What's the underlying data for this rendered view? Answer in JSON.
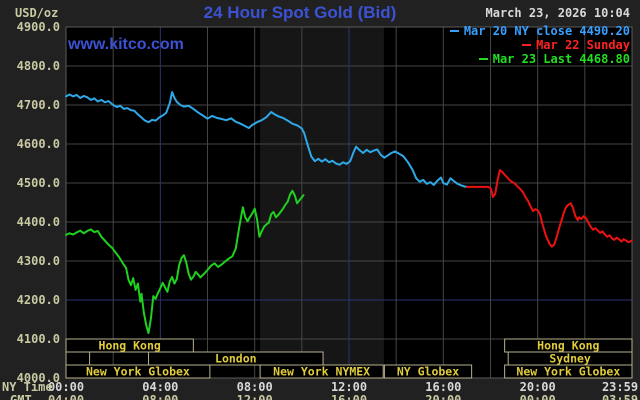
{
  "header": {
    "title": "24 Hour Spot Gold (Bid)",
    "date": "March 23, 2026 10:04",
    "unit": "USD/oz",
    "watermark": "www.kitco.com"
  },
  "legend": [
    {
      "label": "Mar 20 NY close 4490.20",
      "color": "#38a0ff"
    },
    {
      "label": "Mar 22 Sunday",
      "color": "#ff2222"
    },
    {
      "label": "Mar 23 Last 4468.80",
      "color": "#22dd22"
    }
  ],
  "axis": {
    "ny_label": "NY Time",
    "gmt_label": "GMT",
    "tick_hours": [
      0,
      4,
      8,
      12,
      16,
      20,
      23.983
    ],
    "ny_ticks": [
      "00:00",
      "04:00",
      "08:00",
      "12:00",
      "16:00",
      "20:00",
      "23:59"
    ],
    "gmt_ticks": [
      "04:00",
      "08:00",
      "12:00",
      "16:00",
      "20:00",
      "00:00",
      "03:59"
    ]
  },
  "sessions": {
    "rows": [
      [
        {
          "label": "Hong Kong",
          "start": 0,
          "end": 5.4
        },
        {
          "label": "Hong Kong",
          "start": 18.6,
          "end": 24
        }
      ],
      [
        {
          "label": "",
          "start": 0,
          "end": 1.0
        },
        {
          "label": "London",
          "start": 3.5,
          "end": 10.9
        },
        {
          "label": "Sydney",
          "start": 18.75,
          "end": 24
        }
      ],
      [
        {
          "label": "New York Globex",
          "start": 0,
          "end": 6.1
        },
        {
          "label": "New York NYMEX",
          "start": 8.23,
          "end": 13.45
        },
        {
          "label": "NY Globex",
          "start": 13.5,
          "end": 17.2
        },
        {
          "label": "New York Globex",
          "start": 18.6,
          "end": 24
        }
      ]
    ]
  },
  "chart_data": {
    "type": "line",
    "title": "24 Hour Spot Gold (Bid)",
    "ylabel": "USD/oz",
    "ylim": [
      4000,
      4900
    ],
    "ytick_step": 100,
    "xlim_hours": [
      0,
      24
    ],
    "grid": true,
    "accent_hlines": [
      4200
    ],
    "accent_vlines_hours": [
      4,
      12
    ],
    "highlight_band_hours": [
      8.23,
      13.48
    ],
    "legend_position": "top-right",
    "series": [
      {
        "name": "Mar 20 NY close",
        "close": 4490.2,
        "color": "#2fa8e8",
        "points": [
          [
            0.0,
            4722
          ],
          [
            0.15,
            4727
          ],
          [
            0.3,
            4722
          ],
          [
            0.45,
            4726
          ],
          [
            0.6,
            4718
          ],
          [
            0.75,
            4723
          ],
          [
            0.9,
            4720
          ],
          [
            1.05,
            4713
          ],
          [
            1.2,
            4717
          ],
          [
            1.35,
            4709
          ],
          [
            1.5,
            4713
          ],
          [
            1.65,
            4707
          ],
          [
            1.8,
            4710
          ],
          [
            2.0,
            4700
          ],
          [
            2.15,
            4695
          ],
          [
            2.3,
            4698
          ],
          [
            2.45,
            4690
          ],
          [
            2.6,
            4692
          ],
          [
            2.75,
            4687
          ],
          [
            2.9,
            4685
          ],
          [
            3.05,
            4676
          ],
          [
            3.2,
            4668
          ],
          [
            3.35,
            4660
          ],
          [
            3.5,
            4656
          ],
          [
            3.65,
            4662
          ],
          [
            3.8,
            4660
          ],
          [
            3.95,
            4668
          ],
          [
            4.1,
            4673
          ],
          [
            4.25,
            4680
          ],
          [
            4.4,
            4705
          ],
          [
            4.5,
            4733
          ],
          [
            4.6,
            4718
          ],
          [
            4.7,
            4708
          ],
          [
            4.85,
            4700
          ],
          [
            5.0,
            4696
          ],
          [
            5.2,
            4698
          ],
          [
            5.4,
            4690
          ],
          [
            5.6,
            4681
          ],
          [
            5.8,
            4673
          ],
          [
            6.0,
            4665
          ],
          [
            6.2,
            4672
          ],
          [
            6.4,
            4667
          ],
          [
            6.6,
            4664
          ],
          [
            6.8,
            4661
          ],
          [
            7.0,
            4666
          ],
          [
            7.2,
            4657
          ],
          [
            7.4,
            4652
          ],
          [
            7.6,
            4646
          ],
          [
            7.75,
            4641
          ],
          [
            7.9,
            4649
          ],
          [
            8.1,
            4656
          ],
          [
            8.3,
            4661
          ],
          [
            8.5,
            4669
          ],
          [
            8.7,
            4682
          ],
          [
            8.85,
            4676
          ],
          [
            9.0,
            4671
          ],
          [
            9.2,
            4667
          ],
          [
            9.4,
            4660
          ],
          [
            9.6,
            4652
          ],
          [
            9.8,
            4648
          ],
          [
            10.0,
            4640
          ],
          [
            10.1,
            4628
          ],
          [
            10.25,
            4597
          ],
          [
            10.4,
            4568
          ],
          [
            10.55,
            4556
          ],
          [
            10.7,
            4562
          ],
          [
            10.85,
            4555
          ],
          [
            11.0,
            4561
          ],
          [
            11.15,
            4553
          ],
          [
            11.3,
            4557
          ],
          [
            11.45,
            4550
          ],
          [
            11.6,
            4547
          ],
          [
            11.75,
            4553
          ],
          [
            11.9,
            4549
          ],
          [
            12.05,
            4556
          ],
          [
            12.2,
            4580
          ],
          [
            12.3,
            4593
          ],
          [
            12.45,
            4584
          ],
          [
            12.6,
            4577
          ],
          [
            12.75,
            4585
          ],
          [
            12.9,
            4579
          ],
          [
            13.05,
            4583
          ],
          [
            13.2,
            4586
          ],
          [
            13.35,
            4572
          ],
          [
            13.5,
            4565
          ],
          [
            13.65,
            4571
          ],
          [
            13.8,
            4577
          ],
          [
            13.95,
            4581
          ],
          [
            14.1,
            4576
          ],
          [
            14.3,
            4569
          ],
          [
            14.5,
            4553
          ],
          [
            14.7,
            4533
          ],
          [
            14.85,
            4512
          ],
          [
            15.0,
            4503
          ],
          [
            15.15,
            4508
          ],
          [
            15.3,
            4498
          ],
          [
            15.45,
            4502
          ],
          [
            15.6,
            4495
          ],
          [
            15.75,
            4506
          ],
          [
            15.9,
            4514
          ],
          [
            16.0,
            4500
          ],
          [
            16.15,
            4496
          ],
          [
            16.3,
            4512
          ],
          [
            16.45,
            4505
          ],
          [
            16.6,
            4498
          ],
          [
            16.75,
            4494
          ],
          [
            16.9,
            4491
          ],
          [
            17.0,
            4490.2
          ]
        ]
      },
      {
        "name": "Mar 22 Sunday",
        "color": "#ee1111",
        "points": [
          [
            17.0,
            4490
          ],
          [
            17.3,
            4490
          ],
          [
            17.6,
            4490
          ],
          [
            17.9,
            4490
          ],
          [
            18.0,
            4487
          ],
          [
            18.05,
            4478
          ],
          [
            18.1,
            4464
          ],
          [
            18.2,
            4472
          ],
          [
            18.3,
            4508
          ],
          [
            18.4,
            4533
          ],
          [
            18.5,
            4528
          ],
          [
            18.6,
            4521
          ],
          [
            18.7,
            4515
          ],
          [
            18.8,
            4508
          ],
          [
            18.9,
            4503
          ],
          [
            19.0,
            4500
          ],
          [
            19.1,
            4494
          ],
          [
            19.2,
            4488
          ],
          [
            19.3,
            4482
          ],
          [
            19.4,
            4474
          ],
          [
            19.5,
            4462
          ],
          [
            19.6,
            4453
          ],
          [
            19.7,
            4440
          ],
          [
            19.8,
            4428
          ],
          [
            19.9,
            4433
          ],
          [
            20.0,
            4430
          ],
          [
            20.1,
            4420
          ],
          [
            20.2,
            4395
          ],
          [
            20.35,
            4365
          ],
          [
            20.5,
            4344
          ],
          [
            20.6,
            4337
          ],
          [
            20.7,
            4342
          ],
          [
            20.8,
            4360
          ],
          [
            20.9,
            4382
          ],
          [
            21.0,
            4402
          ],
          [
            21.1,
            4422
          ],
          [
            21.2,
            4438
          ],
          [
            21.3,
            4444
          ],
          [
            21.4,
            4448
          ],
          [
            21.5,
            4436
          ],
          [
            21.6,
            4415
          ],
          [
            21.7,
            4405
          ],
          [
            21.75,
            4412
          ],
          [
            21.85,
            4408
          ],
          [
            21.95,
            4415
          ],
          [
            22.05,
            4410
          ],
          [
            22.15,
            4398
          ],
          [
            22.25,
            4388
          ],
          [
            22.35,
            4380
          ],
          [
            22.45,
            4384
          ],
          [
            22.55,
            4378
          ],
          [
            22.65,
            4372
          ],
          [
            22.75,
            4376
          ],
          [
            22.85,
            4368
          ],
          [
            22.95,
            4362
          ],
          [
            23.05,
            4366
          ],
          [
            23.15,
            4358
          ],
          [
            23.25,
            4354
          ],
          [
            23.35,
            4360
          ],
          [
            23.45,
            4356
          ],
          [
            23.55,
            4350
          ],
          [
            23.65,
            4356
          ],
          [
            23.75,
            4352
          ],
          [
            23.85,
            4348
          ],
          [
            23.98,
            4352
          ]
        ]
      },
      {
        "name": "Mar 23 Last",
        "last": 4468.8,
        "color": "#1fd11f",
        "points": [
          [
            0.0,
            4367
          ],
          [
            0.15,
            4371
          ],
          [
            0.3,
            4368
          ],
          [
            0.45,
            4373
          ],
          [
            0.6,
            4378
          ],
          [
            0.75,
            4371
          ],
          [
            0.9,
            4377
          ],
          [
            1.05,
            4381
          ],
          [
            1.2,
            4374
          ],
          [
            1.35,
            4377
          ],
          [
            1.5,
            4362
          ],
          [
            1.65,
            4352
          ],
          [
            1.8,
            4342
          ],
          [
            1.95,
            4334
          ],
          [
            2.1,
            4322
          ],
          [
            2.25,
            4310
          ],
          [
            2.4,
            4295
          ],
          [
            2.55,
            4282
          ],
          [
            2.65,
            4252
          ],
          [
            2.75,
            4238
          ],
          [
            2.85,
            4256
          ],
          [
            2.95,
            4226
          ],
          [
            3.05,
            4242
          ],
          [
            3.15,
            4196
          ],
          [
            3.2,
            4216
          ],
          [
            3.3,
            4168
          ],
          [
            3.4,
            4136
          ],
          [
            3.5,
            4115
          ],
          [
            3.6,
            4152
          ],
          [
            3.7,
            4210
          ],
          [
            3.8,
            4203
          ],
          [
            3.9,
            4218
          ],
          [
            4.0,
            4230
          ],
          [
            4.1,
            4244
          ],
          [
            4.2,
            4232
          ],
          [
            4.3,
            4221
          ],
          [
            4.4,
            4248
          ],
          [
            4.5,
            4259
          ],
          [
            4.6,
            4242
          ],
          [
            4.7,
            4254
          ],
          [
            4.8,
            4290
          ],
          [
            4.9,
            4308
          ],
          [
            5.0,
            4315
          ],
          [
            5.1,
            4296
          ],
          [
            5.2,
            4268
          ],
          [
            5.3,
            4252
          ],
          [
            5.4,
            4260
          ],
          [
            5.5,
            4272
          ],
          [
            5.6,
            4266
          ],
          [
            5.7,
            4258
          ],
          [
            5.8,
            4264
          ],
          [
            5.9,
            4270
          ],
          [
            6.0,
            4277
          ],
          [
            6.15,
            4288
          ],
          [
            6.3,
            4294
          ],
          [
            6.45,
            4285
          ],
          [
            6.6,
            4291
          ],
          [
            6.75,
            4299
          ],
          [
            6.9,
            4306
          ],
          [
            7.05,
            4312
          ],
          [
            7.2,
            4332
          ],
          [
            7.35,
            4388
          ],
          [
            7.5,
            4438
          ],
          [
            7.6,
            4412
          ],
          [
            7.7,
            4402
          ],
          [
            7.8,
            4413
          ],
          [
            7.9,
            4422
          ],
          [
            8.0,
            4434
          ],
          [
            8.1,
            4408
          ],
          [
            8.2,
            4362
          ],
          [
            8.3,
            4376
          ],
          [
            8.4,
            4388
          ],
          [
            8.5,
            4394
          ],
          [
            8.6,
            4398
          ],
          [
            8.7,
            4420
          ],
          [
            8.8,
            4426
          ],
          [
            8.9,
            4412
          ],
          [
            9.0,
            4418
          ],
          [
            9.1,
            4426
          ],
          [
            9.2,
            4434
          ],
          [
            9.3,
            4444
          ],
          [
            9.4,
            4452
          ],
          [
            9.5,
            4470
          ],
          [
            9.6,
            4480
          ],
          [
            9.7,
            4468
          ],
          [
            9.8,
            4448
          ],
          [
            9.9,
            4456
          ],
          [
            10.0,
            4463
          ],
          [
            10.07,
            4468.8
          ]
        ]
      }
    ]
  },
  "colors": {
    "background": "#212121",
    "plot_background": "#000000",
    "band": "#161616",
    "grid": "#454545",
    "grid_accent": "#2b3470",
    "plot_border": "#5a5a5a",
    "axis_value_text": "#c9c9a3",
    "time_text": "#d9d9d9",
    "session_text": "#e0cc3c",
    "session_border": "#b9b18c",
    "title_blue": "#3c52d4",
    "date_text": "#d9d9d9"
  }
}
